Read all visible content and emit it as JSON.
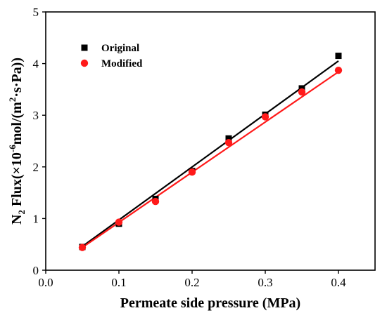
{
  "chart_data": {
    "type": "scatter",
    "xlabel": "Permeate side pressure (MPa)",
    "ylabel": {
      "prefix": "N",
      "sub": "2",
      "mid1": " Flux(×10",
      "exp1": "-6",
      "mid2": "mol/(m",
      "exp2": "2",
      "suffix": "·s·Pa))"
    },
    "xlim": [
      0.0,
      0.45
    ],
    "ylim": [
      0,
      5
    ],
    "xticks": [
      "0.0",
      "0.1",
      "0.2",
      "0.3",
      "0.4"
    ],
    "yticks": [
      "0",
      "1",
      "2",
      "3",
      "4",
      "5"
    ],
    "legend_position": "top-left",
    "series": [
      {
        "name": "Original",
        "marker": "square",
        "color": "#000000",
        "x": [
          0.05,
          0.1,
          0.15,
          0.2,
          0.25,
          0.3,
          0.35,
          0.4
        ],
        "y": [
          0.45,
          0.9,
          1.38,
          1.92,
          2.55,
          3.01,
          3.52,
          4.15
        ],
        "fit": {
          "x": [
            0.05,
            0.4
          ],
          "y": [
            0.46,
            4.05
          ]
        }
      },
      {
        "name": "Modified",
        "marker": "circle",
        "color": "#ff1a1a",
        "x": [
          0.05,
          0.1,
          0.15,
          0.2,
          0.25,
          0.3,
          0.35,
          0.4
        ],
        "y": [
          0.44,
          0.93,
          1.33,
          1.9,
          2.47,
          2.97,
          3.45,
          3.87
        ],
        "fit": {
          "x": [
            0.05,
            0.4
          ],
          "y": [
            0.44,
            3.84
          ]
        }
      }
    ]
  }
}
